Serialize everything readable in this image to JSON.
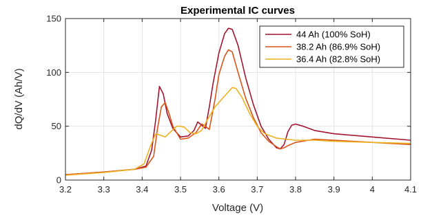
{
  "chart_data": {
    "type": "line",
    "title": "Experimental IC curves",
    "xlabel": "Voltage (V)",
    "ylabel": "dQ/dV (Ah/V)",
    "xlim": [
      3.2,
      4.1
    ],
    "ylim": [
      0,
      150
    ],
    "xticks": [
      3.2,
      3.3,
      3.4,
      3.5,
      3.6,
      3.7,
      3.8,
      3.9,
      4,
      4.1
    ],
    "xtick_labels": [
      "3.2",
      "3.3",
      "3.4",
      "3.5",
      "3.6",
      "3.7",
      "3.8",
      "3.9",
      "4",
      "4.1"
    ],
    "yticks": [
      0,
      50,
      100,
      150
    ],
    "ytick_labels": [
      "0",
      "50",
      "100",
      "150"
    ],
    "grid": true,
    "legend_position": "top-right",
    "series": [
      {
        "name": "44 Ah (100% SoH)",
        "color": "#a2142f",
        "x": [
          3.2,
          3.3,
          3.38,
          3.41,
          3.425,
          3.435,
          3.445,
          3.455,
          3.465,
          3.48,
          3.5,
          3.52,
          3.535,
          3.545,
          3.555,
          3.565,
          3.575,
          3.585,
          3.6,
          3.615,
          3.625,
          3.635,
          3.65,
          3.67,
          3.69,
          3.71,
          3.73,
          3.75,
          3.76,
          3.77,
          3.78,
          3.79,
          3.8,
          3.82,
          3.85,
          3.9,
          4.0,
          4.1
        ],
        "y": [
          5,
          7.5,
          10,
          13,
          28,
          55,
          87,
          80,
          62,
          48,
          40,
          41,
          46,
          54,
          51,
          48,
          68,
          90,
          118,
          136,
          141,
          140,
          125,
          95,
          70,
          50,
          38,
          30,
          29,
          33,
          45,
          51,
          52,
          50,
          46,
          43,
          40,
          37
        ]
      },
      {
        "name": "38.2 Ah (86.9% SoH)",
        "color": "#d95319",
        "x": [
          3.2,
          3.3,
          3.38,
          3.41,
          3.43,
          3.44,
          3.45,
          3.46,
          3.47,
          3.48,
          3.5,
          3.52,
          3.54,
          3.555,
          3.565,
          3.575,
          3.59,
          3.6,
          3.615,
          3.625,
          3.635,
          3.65,
          3.67,
          3.69,
          3.71,
          3.73,
          3.75,
          3.76,
          3.77,
          3.78,
          3.8,
          3.85,
          3.9,
          4.0,
          4.1
        ],
        "y": [
          5,
          7.5,
          10,
          12,
          22,
          48,
          68,
          72,
          62,
          50,
          38,
          39,
          44,
          52,
          50,
          47,
          75,
          98,
          115,
          121,
          119,
          100,
          76,
          58,
          44,
          36,
          31,
          29,
          30,
          32,
          35,
          38,
          37,
          35,
          33
        ]
      },
      {
        "name": "36.4 Ah (82.8% SoH)",
        "color": "#edb120",
        "x": [
          3.2,
          3.3,
          3.38,
          3.405,
          3.42,
          3.435,
          3.445,
          3.46,
          3.475,
          3.49,
          3.5,
          3.51,
          3.525,
          3.54,
          3.555,
          3.57,
          3.59,
          3.61,
          3.625,
          3.635,
          3.645,
          3.66,
          3.68,
          3.7,
          3.72,
          3.75,
          3.8,
          3.85,
          3.9,
          4.0,
          4.1
        ],
        "y": [
          4.5,
          7,
          10,
          15,
          30,
          43,
          42,
          40,
          45,
          50,
          50,
          49,
          44,
          43,
          46,
          56,
          68,
          76,
          82,
          86,
          85,
          77,
          62,
          50,
          43,
          39,
          37,
          37,
          36,
          35,
          34
        ]
      }
    ]
  }
}
